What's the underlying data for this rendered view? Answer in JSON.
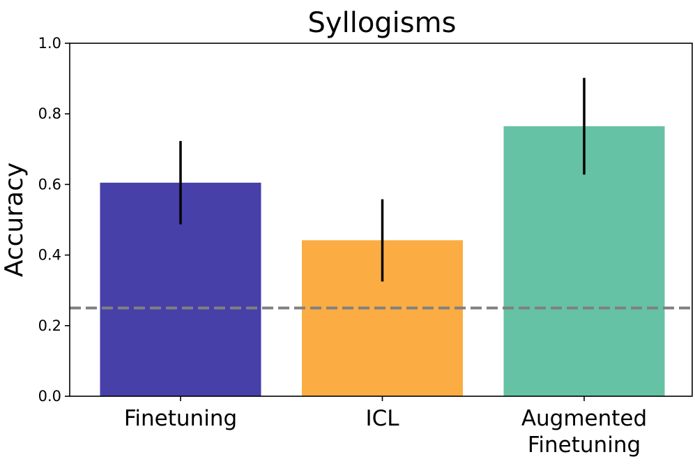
{
  "chart_data": {
    "type": "bar",
    "title": "Syllogisms",
    "xlabel": "",
    "ylabel": "Accuracy",
    "ylim": [
      0,
      1
    ],
    "yticks": [
      0.0,
      0.2,
      0.4,
      0.6,
      0.8,
      1.0
    ],
    "ytick_labels": [
      "0.0",
      "0.2",
      "0.4",
      "0.6",
      "0.8",
      "1.0"
    ],
    "categories": [
      {
        "id": "finetuning",
        "lines": [
          "Finetuning"
        ]
      },
      {
        "id": "icl",
        "lines": [
          "ICL"
        ]
      },
      {
        "id": "augmented-finetuning",
        "lines": [
          "Augmented",
          "Finetuning"
        ]
      }
    ],
    "values": [
      0.605,
      0.442,
      0.765
    ],
    "error_low": [
      0.487,
      0.325,
      0.628
    ],
    "error_high": [
      0.723,
      0.558,
      0.902
    ],
    "colors": [
      "#4640a8",
      "#fbad43",
      "#66c2a5"
    ],
    "baseline": {
      "value": 0.25,
      "color": "#808080",
      "style": "dashed"
    },
    "grid": false,
    "legend": null
  }
}
